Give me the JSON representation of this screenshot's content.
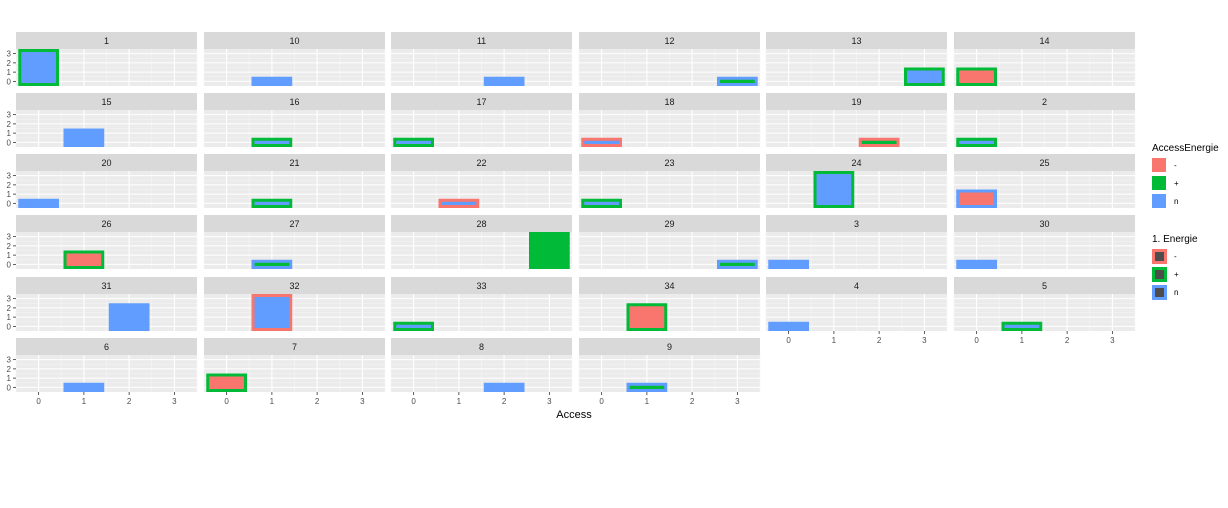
{
  "chart_data": {
    "type": "bar",
    "facet_labels": [
      "1",
      "10",
      "11",
      "12",
      "13",
      "14",
      "15",
      "16",
      "17",
      "18",
      "19",
      "2",
      "20",
      "21",
      "22",
      "23",
      "24",
      "25",
      "26",
      "27",
      "28",
      "29",
      "3",
      "30",
      "31",
      "32",
      "33",
      "34",
      "4",
      "5",
      "6",
      "7",
      "8",
      "9"
    ],
    "x_ticks": [
      "0",
      "1",
      "2",
      "3"
    ],
    "y_ticks": [
      "0",
      "1",
      "2",
      "3"
    ],
    "xlabel": "Access",
    "ylabel": "",
    "xlim": [
      -0.5,
      3.5
    ],
    "ylim": [
      -0.5,
      3.5
    ],
    "grid": true,
    "legend_position": "right",
    "fill_legend": {
      "title": "AccessEnergie",
      "entries": [
        {
          "label": "-",
          "color": "#F8766D"
        },
        {
          "label": "+",
          "color": "#00BA38"
        },
        {
          "label": "n",
          "color": "#619CFF"
        }
      ]
    },
    "outline_legend": {
      "title": "1. Energie",
      "entries": [
        {
          "label": "-",
          "color": "#F8766D"
        },
        {
          "label": "+",
          "color": "#00BA38"
        },
        {
          "label": "n",
          "color": "#619CFF"
        }
      ]
    },
    "bars": [
      {
        "panel": "1",
        "x": 0,
        "y": 3,
        "fill": "n",
        "outline": "+"
      },
      {
        "panel": "10",
        "x": 1,
        "y": 0,
        "fill": "n",
        "outline": null
      },
      {
        "panel": "11",
        "x": 2,
        "y": 0,
        "fill": "n",
        "outline": null
      },
      {
        "panel": "12",
        "x": 3,
        "y": 0,
        "fill": "+",
        "outline": "n"
      },
      {
        "panel": "13",
        "x": 3,
        "y": 1,
        "fill": "n",
        "outline": "+"
      },
      {
        "panel": "14",
        "x": 0,
        "y": 1,
        "fill": "-",
        "outline": "+"
      },
      {
        "panel": "15",
        "x": 1,
        "y": 1,
        "fill": "n",
        "outline": null
      },
      {
        "panel": "16",
        "x": 1,
        "y": 0,
        "fill": "n",
        "outline": "+"
      },
      {
        "panel": "17",
        "x": 0,
        "y": 0,
        "fill": "n",
        "outline": "+"
      },
      {
        "panel": "18",
        "x": 0,
        "y": 0,
        "fill": "n",
        "outline": "-"
      },
      {
        "panel": "19",
        "x": 2,
        "y": 0,
        "fill": "+",
        "outline": "-"
      },
      {
        "panel": "2",
        "x": 0,
        "y": 0,
        "fill": "n",
        "outline": "+"
      },
      {
        "panel": "20",
        "x": 0,
        "y": 0,
        "fill": "n",
        "outline": null
      },
      {
        "panel": "21",
        "x": 1,
        "y": 0,
        "fill": "n",
        "outline": "+"
      },
      {
        "panel": "22",
        "x": 1,
        "y": 0,
        "fill": "n",
        "outline": "-"
      },
      {
        "panel": "23",
        "x": 0,
        "y": 0,
        "fill": "n",
        "outline": "+"
      },
      {
        "panel": "24",
        "x": 1,
        "y": 3,
        "fill": "n",
        "outline": "+"
      },
      {
        "panel": "25",
        "x": 0,
        "y": 1,
        "fill": "-",
        "outline": "n"
      },
      {
        "panel": "26",
        "x": 1,
        "y": 1,
        "fill": "-",
        "outline": "+"
      },
      {
        "panel": "27",
        "x": 1,
        "y": 0,
        "fill": "+",
        "outline": "n"
      },
      {
        "panel": "28",
        "x": 3,
        "y": 3,
        "fill": "+",
        "outline": null
      },
      {
        "panel": "29",
        "x": 3,
        "y": 0,
        "fill": "+",
        "outline": "n"
      },
      {
        "panel": "3",
        "x": 0,
        "y": 0,
        "fill": "n",
        "outline": null
      },
      {
        "panel": "30",
        "x": 0,
        "y": 0,
        "fill": "n",
        "outline": null
      },
      {
        "panel": "31",
        "x": 2,
        "y": 2,
        "fill": "n",
        "outline": null
      },
      {
        "panel": "32",
        "x": 1,
        "y": 3,
        "fill": "n",
        "outline": "-"
      },
      {
        "panel": "33",
        "x": 0,
        "y": 0,
        "fill": "n",
        "outline": "+"
      },
      {
        "panel": "34",
        "x": 1,
        "y": 2,
        "fill": "-",
        "outline": "+"
      },
      {
        "panel": "4",
        "x": 0,
        "y": 0,
        "fill": "n",
        "outline": null
      },
      {
        "panel": "5",
        "x": 1,
        "y": 0,
        "fill": "n",
        "outline": "+"
      },
      {
        "panel": "6",
        "x": 1,
        "y": 0,
        "fill": "n",
        "outline": null
      },
      {
        "panel": "7",
        "x": 0,
        "y": 1,
        "fill": "-",
        "outline": "+"
      },
      {
        "panel": "8",
        "x": 2,
        "y": 0,
        "fill": "n",
        "outline": null
      },
      {
        "panel": "9",
        "x": 1,
        "y": 0,
        "fill": "+",
        "outline": "n"
      }
    ]
  }
}
